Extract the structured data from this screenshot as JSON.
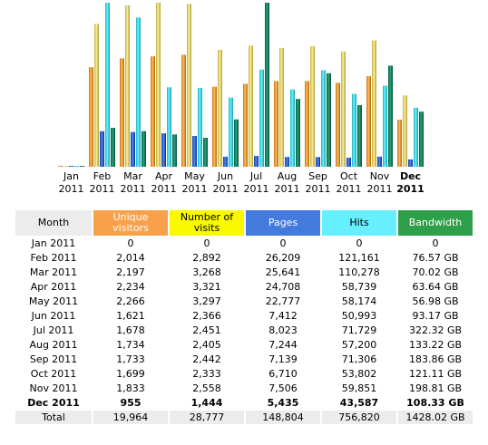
{
  "colors": {
    "visitors": "#f1a23f",
    "visits": "#e8d877",
    "pages": "#3a6bd6",
    "hits": "#4fdbe6",
    "bandwidth": "#138a69"
  },
  "table": {
    "headers": {
      "month": "Month",
      "visitors": "Unique visitors",
      "visits": "Number of visits",
      "pages": "Pages",
      "hits": "Hits",
      "bandwidth": "Bandwidth"
    },
    "rows": [
      {
        "month": "Jan 2011",
        "visitors": "0",
        "visits": "0",
        "pages": "0",
        "hits": "0",
        "bandwidth": "0"
      },
      {
        "month": "Feb 2011",
        "visitors": "2,014",
        "visits": "2,892",
        "pages": "26,209",
        "hits": "121,161",
        "bandwidth": "76.57 GB"
      },
      {
        "month": "Mar 2011",
        "visitors": "2,197",
        "visits": "3,268",
        "pages": "25,641",
        "hits": "110,278",
        "bandwidth": "70.02 GB"
      },
      {
        "month": "Apr 2011",
        "visitors": "2,234",
        "visits": "3,321",
        "pages": "24,708",
        "hits": "58,739",
        "bandwidth": "63.64 GB"
      },
      {
        "month": "May 2011",
        "visitors": "2,266",
        "visits": "3,297",
        "pages": "22,777",
        "hits": "58,174",
        "bandwidth": "56.98 GB"
      },
      {
        "month": "Jun 2011",
        "visitors": "1,621",
        "visits": "2,366",
        "pages": "7,412",
        "hits": "50,993",
        "bandwidth": "93.17 GB"
      },
      {
        "month": "Jul 2011",
        "visitors": "1,678",
        "visits": "2,451",
        "pages": "8,023",
        "hits": "71,729",
        "bandwidth": "322.32 GB"
      },
      {
        "month": "Aug 2011",
        "visitors": "1,734",
        "visits": "2,405",
        "pages": "7,244",
        "hits": "57,200",
        "bandwidth": "133.22 GB"
      },
      {
        "month": "Sep 2011",
        "visitors": "1,733",
        "visits": "2,442",
        "pages": "7,139",
        "hits": "71,306",
        "bandwidth": "183.86 GB"
      },
      {
        "month": "Oct 2011",
        "visitors": "1,699",
        "visits": "2,333",
        "pages": "6,710",
        "hits": "53,802",
        "bandwidth": "121.11 GB"
      },
      {
        "month": "Nov 2011",
        "visitors": "1,833",
        "visits": "2,558",
        "pages": "7,506",
        "hits": "59,851",
        "bandwidth": "198.81 GB"
      },
      {
        "month": "Dec 2011",
        "visitors": "955",
        "visits": "1,444",
        "pages": "5,435",
        "hits": "43,587",
        "bandwidth": "108.33 GB"
      }
    ],
    "total": {
      "month": "Total",
      "visitors": "19,964",
      "visits": "28,777",
      "pages": "148,804",
      "hits": "756,820",
      "bandwidth": "1428.02 GB"
    }
  },
  "chart_data": {
    "type": "bar",
    "categories": [
      {
        "month": "Jan",
        "year": "2011"
      },
      {
        "month": "Feb",
        "year": "2011"
      },
      {
        "month": "Mar",
        "year": "2011"
      },
      {
        "month": "Apr",
        "year": "2011"
      },
      {
        "month": "May",
        "year": "2011"
      },
      {
        "month": "Jun",
        "year": "2011"
      },
      {
        "month": "Jul",
        "year": "2011"
      },
      {
        "month": "Aug",
        "year": "2011"
      },
      {
        "month": "Sep",
        "year": "2011"
      },
      {
        "month": "Oct",
        "year": "2011"
      },
      {
        "month": "Nov",
        "year": "2011"
      },
      {
        "month": "Dec",
        "year": "2011"
      }
    ],
    "highlighted_category": "Dec",
    "series": [
      {
        "key": "visitors",
        "values": [
          0,
          2014,
          2197,
          2234,
          2266,
          1621,
          1678,
          1734,
          1733,
          1699,
          1833,
          955
        ]
      },
      {
        "key": "visits",
        "values": [
          0,
          2892,
          3268,
          3321,
          3297,
          2366,
          2451,
          2405,
          2442,
          2333,
          2558,
          1444
        ]
      },
      {
        "key": "pages",
        "values": [
          0,
          26209,
          25641,
          24708,
          22777,
          7412,
          8023,
          7244,
          7139,
          6710,
          7506,
          5435
        ]
      },
      {
        "key": "hits",
        "values": [
          0,
          121161,
          110278,
          58739,
          58174,
          50993,
          71729,
          57200,
          71306,
          53802,
          59851,
          43587
        ]
      },
      {
        "key": "bandwidth",
        "values": [
          0,
          76.57,
          70.02,
          63.64,
          56.98,
          93.17,
          322.32,
          133.22,
          183.86,
          121.11,
          198.81,
          108.33
        ]
      }
    ],
    "scale_groups": [
      [
        "visitors",
        "visits"
      ],
      [
        "pages",
        "hits"
      ],
      [
        "bandwidth"
      ]
    ],
    "grid": false,
    "legend": "none"
  }
}
